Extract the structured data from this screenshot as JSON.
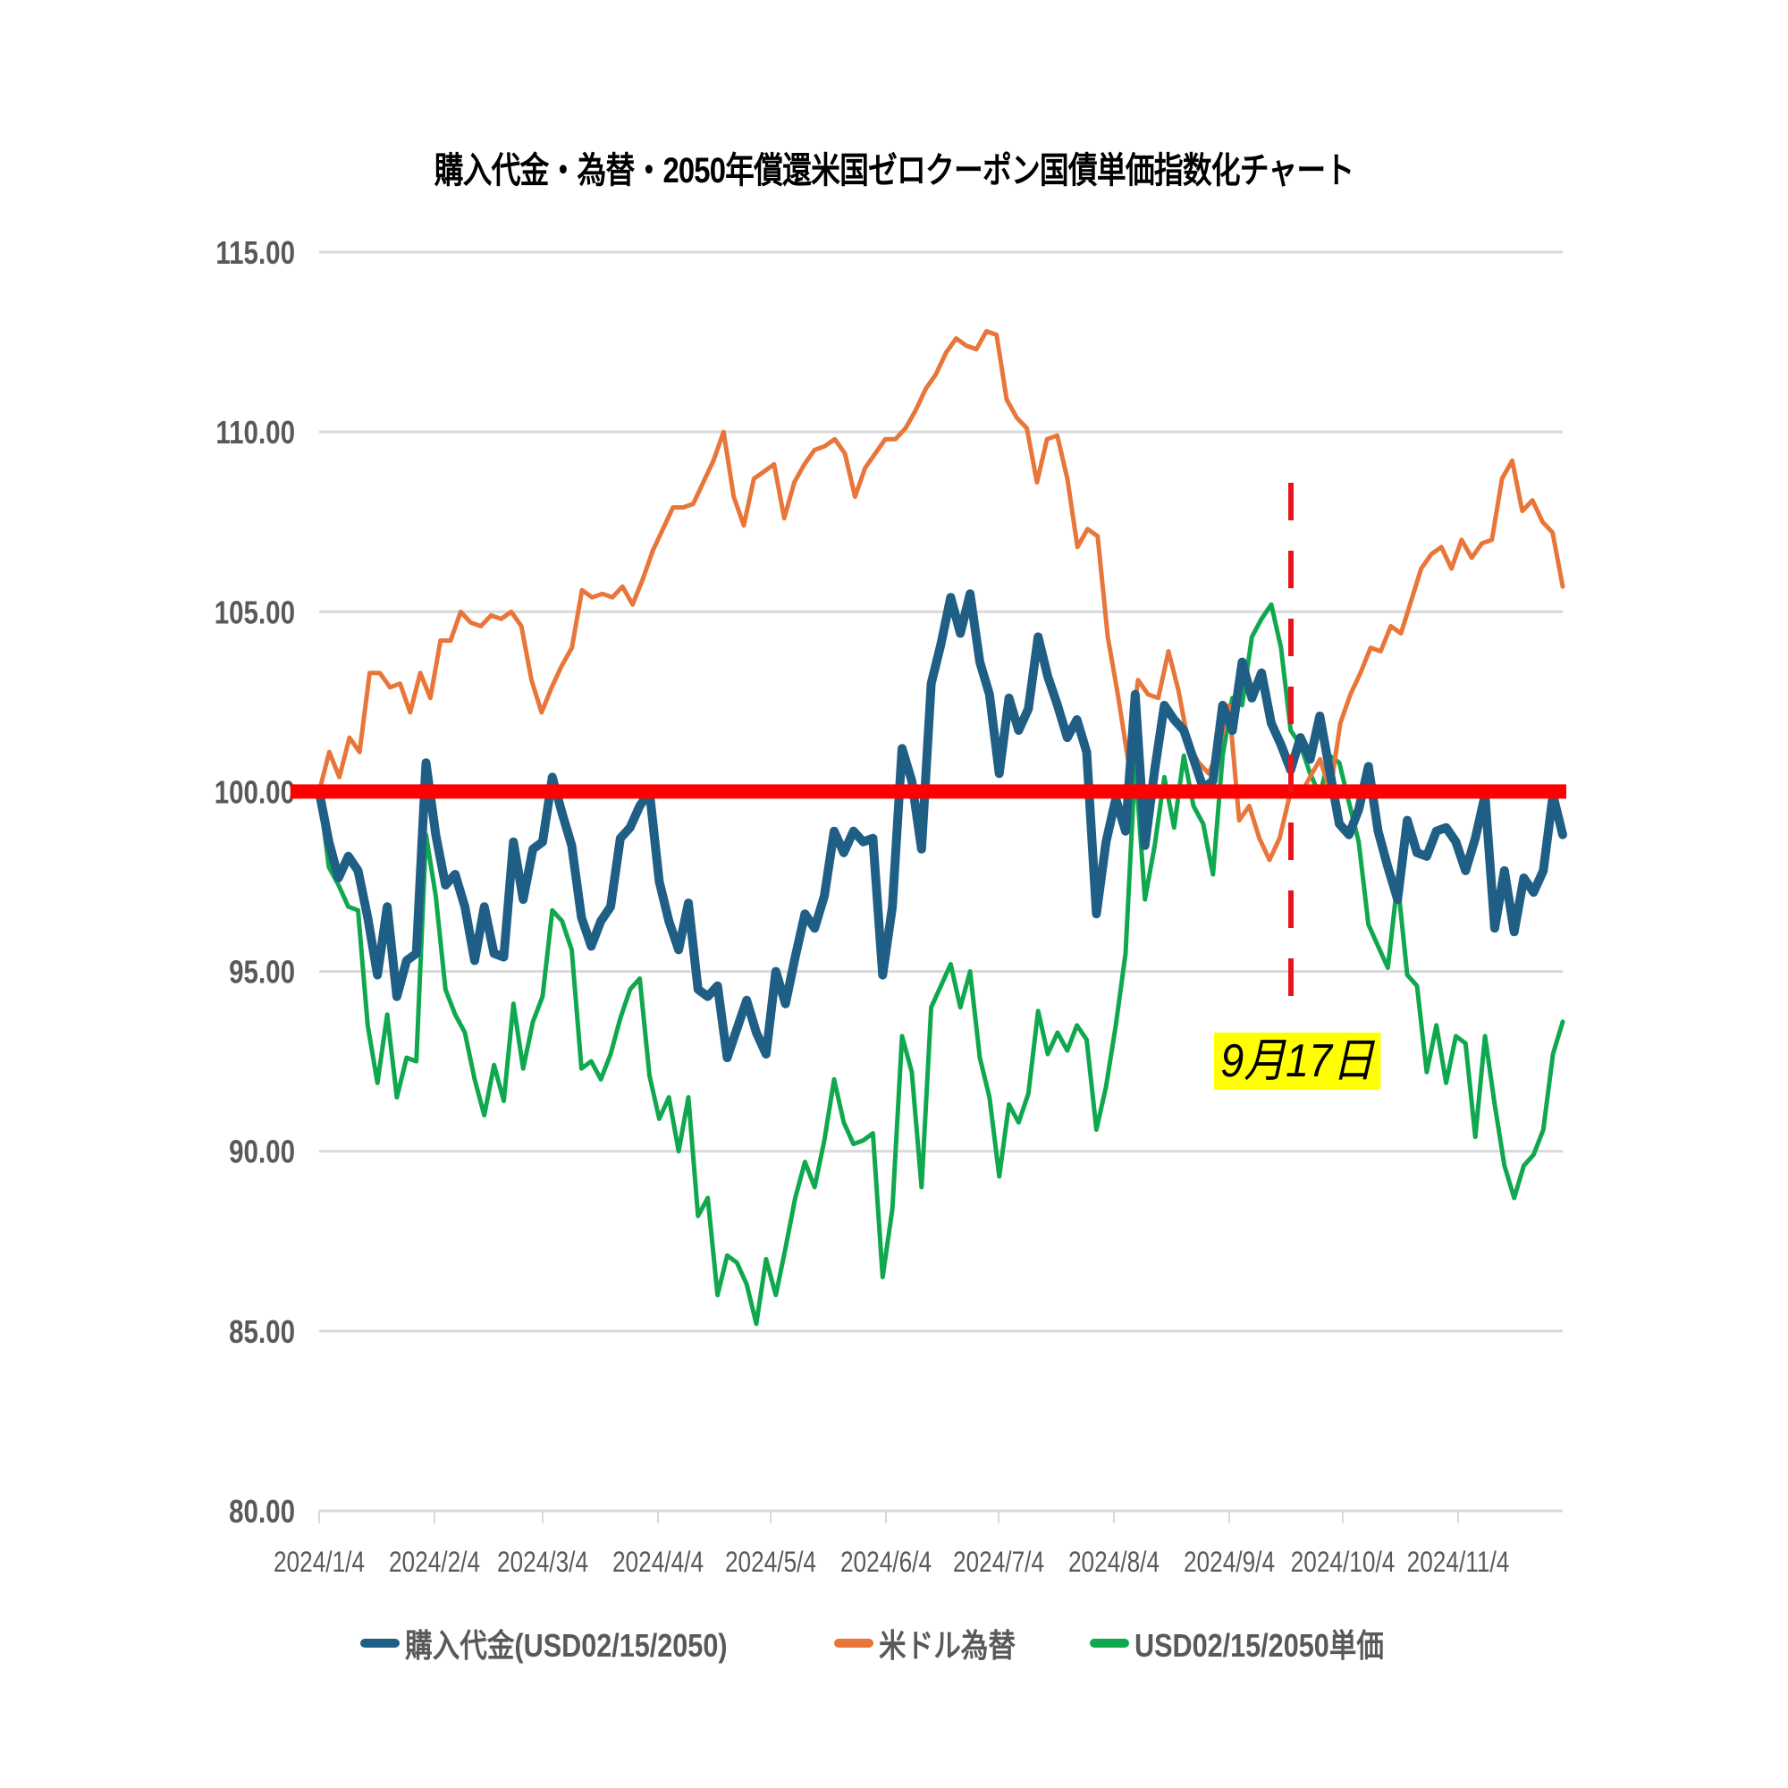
{
  "chart_data": {
    "type": "line",
    "title": "購入代金・為替・2050年償還米国ゼロクーポン国債単価指数化チャート",
    "xlabel": "",
    "ylabel": "",
    "ylim": [
      80,
      115
    ],
    "yticks": [
      "115.00",
      "110.00",
      "105.00",
      "100.00",
      "95.00",
      "90.00",
      "85.00",
      "80.00"
    ],
    "xticks": [
      "2024/1/4",
      "2024/2/4",
      "2024/3/4",
      "2024/4/4",
      "2024/5/4",
      "2024/6/4",
      "2024/7/4",
      "2024/8/4",
      "2024/9/4",
      "2024/10/4",
      "2024/11/4"
    ],
    "grid": true,
    "legend_position": "bottom",
    "reference_line": {
      "value": 100,
      "color": "#ff0000",
      "label": "baseline 100"
    },
    "annotation": {
      "label": "9月17日",
      "x": "2024/9/17",
      "style": "dashed vertical red line, yellow label"
    },
    "series": [
      {
        "name": "購入代金(USD02/15/2050)",
        "color": "#1f5f85",
        "values": [
          100.0,
          98.6,
          97.6,
          98.2,
          97.8,
          96.5,
          94.9,
          96.8,
          94.3,
          95.3,
          95.5,
          100.8,
          98.8,
          97.4,
          97.7,
          96.8,
          95.3,
          96.8,
          95.5,
          95.4,
          98.6,
          97.0,
          98.4,
          98.6,
          100.4,
          99.4,
          98.5,
          96.5,
          95.7,
          96.4,
          96.8,
          98.7,
          99.0,
          99.6,
          100.0,
          97.5,
          96.4,
          95.6,
          96.9,
          94.5,
          94.3,
          94.6,
          92.6,
          93.4,
          94.2,
          93.3,
          92.7,
          95.0,
          94.1,
          95.4,
          96.6,
          96.2,
          97.1,
          98.9,
          98.3,
          98.9,
          98.6,
          98.7,
          94.9,
          96.8,
          101.2,
          100.3,
          98.4,
          103.0,
          104.1,
          105.4,
          104.4,
          105.5,
          103.6,
          102.7,
          100.5,
          102.6,
          101.7,
          102.3,
          104.3,
          103.2,
          102.4,
          101.5,
          102.0,
          101.1,
          96.6,
          98.6,
          99.8,
          98.9,
          102.7,
          98.5,
          100.6,
          102.4,
          102.0,
          101.7,
          100.9,
          100.1,
          100.3,
          102.4,
          101.7,
          103.6,
          102.6,
          103.3,
          101.9,
          101.3,
          100.6,
          101.5,
          100.9,
          102.1,
          100.6,
          99.1,
          98.8,
          99.5,
          100.7,
          98.9,
          97.9,
          97.0,
          99.2,
          98.3,
          98.2,
          98.9,
          99.0,
          98.6,
          97.8,
          98.7,
          99.9,
          96.2,
          97.8,
          96.1,
          97.6,
          97.2,
          97.8,
          99.9,
          98.8
        ]
      },
      {
        "name": "米ドル為替",
        "color": "#e8763a",
        "values": [
          100.0,
          101.1,
          100.4,
          101.5,
          101.1,
          103.3,
          103.3,
          102.9,
          103.0,
          102.2,
          103.3,
          102.6,
          104.2,
          104.2,
          105.0,
          104.7,
          104.6,
          104.9,
          104.8,
          105.0,
          104.6,
          103.1,
          102.2,
          102.9,
          103.5,
          104.0,
          105.6,
          105.4,
          105.5,
          105.4,
          105.7,
          105.2,
          105.9,
          106.7,
          107.3,
          107.9,
          107.9,
          108.0,
          108.6,
          109.2,
          110.0,
          108.2,
          107.4,
          108.7,
          108.9,
          109.1,
          107.6,
          108.6,
          109.1,
          109.5,
          109.6,
          109.8,
          109.4,
          108.2,
          109.0,
          109.4,
          109.8,
          109.8,
          110.1,
          110.6,
          111.2,
          111.6,
          112.2,
          112.6,
          112.4,
          112.3,
          112.8,
          112.7,
          110.9,
          110.4,
          110.1,
          108.6,
          109.8,
          109.9,
          108.7,
          106.8,
          107.3,
          107.1,
          104.3,
          102.7,
          100.9,
          103.1,
          102.7,
          102.6,
          103.9,
          102.8,
          101.3,
          100.8,
          100.5,
          101.2,
          102.4,
          99.2,
          99.6,
          98.7,
          98.1,
          98.7,
          99.9,
          99.9,
          100.4,
          100.9,
          100.0,
          101.9,
          102.7,
          103.3,
          104.0,
          103.9,
          104.6,
          104.4,
          105.3,
          106.2,
          106.6,
          106.8,
          106.2,
          107.0,
          106.5,
          106.9,
          107.0,
          108.7,
          109.2,
          107.8,
          108.1,
          107.5,
          107.2,
          105.7
        ]
      },
      {
        "name": "USD02/15/2050単価",
        "color": "#0fa84e",
        "values": [
          100.0,
          97.9,
          97.4,
          96.8,
          96.7,
          93.5,
          91.9,
          93.8,
          91.5,
          92.6,
          92.5,
          98.8,
          97.1,
          94.5,
          93.8,
          93.3,
          92.0,
          91.0,
          92.4,
          91.4,
          94.1,
          92.3,
          93.6,
          94.3,
          96.7,
          96.4,
          95.6,
          92.3,
          92.5,
          92.0,
          92.7,
          93.7,
          94.5,
          94.8,
          92.1,
          90.9,
          91.5,
          90.0,
          91.5,
          88.2,
          88.7,
          86.0,
          87.1,
          86.9,
          86.3,
          85.2,
          87.0,
          86.0,
          87.3,
          88.7,
          89.7,
          89.0,
          90.3,
          92.0,
          90.8,
          90.2,
          90.3,
          90.5,
          86.5,
          88.4,
          93.2,
          92.2,
          89.0,
          94.0,
          94.6,
          95.2,
          94.0,
          95.0,
          92.6,
          91.5,
          89.3,
          91.3,
          90.8,
          91.6,
          93.9,
          92.7,
          93.3,
          92.8,
          93.5,
          93.1,
          90.6,
          91.8,
          93.5,
          95.5,
          100.8,
          97.0,
          98.5,
          100.4,
          99.0,
          101.0,
          99.6,
          99.1,
          97.7,
          101.0,
          102.6,
          102.4,
          104.3,
          104.8,
          105.2,
          104.0,
          101.7,
          101.3,
          100.5,
          99.9,
          101.0,
          100.8,
          99.7,
          98.6,
          96.3,
          95.7,
          95.1,
          97.5,
          94.9,
          94.6,
          92.2,
          93.5,
          91.9,
          93.2,
          93.0,
          90.4,
          93.2,
          91.3,
          89.6,
          88.7,
          89.6,
          89.9,
          90.6,
          92.7,
          93.6
        ]
      }
    ]
  },
  "legend": {
    "items": [
      {
        "label": "購入代金(USD02/15/2050)",
        "color": "#1f5f85"
      },
      {
        "label": "米ドル為替",
        "color": "#e8763a"
      },
      {
        "label": "USD02/15/2050単価",
        "color": "#0fa84e"
      }
    ]
  },
  "annotation_label": "9月17日"
}
